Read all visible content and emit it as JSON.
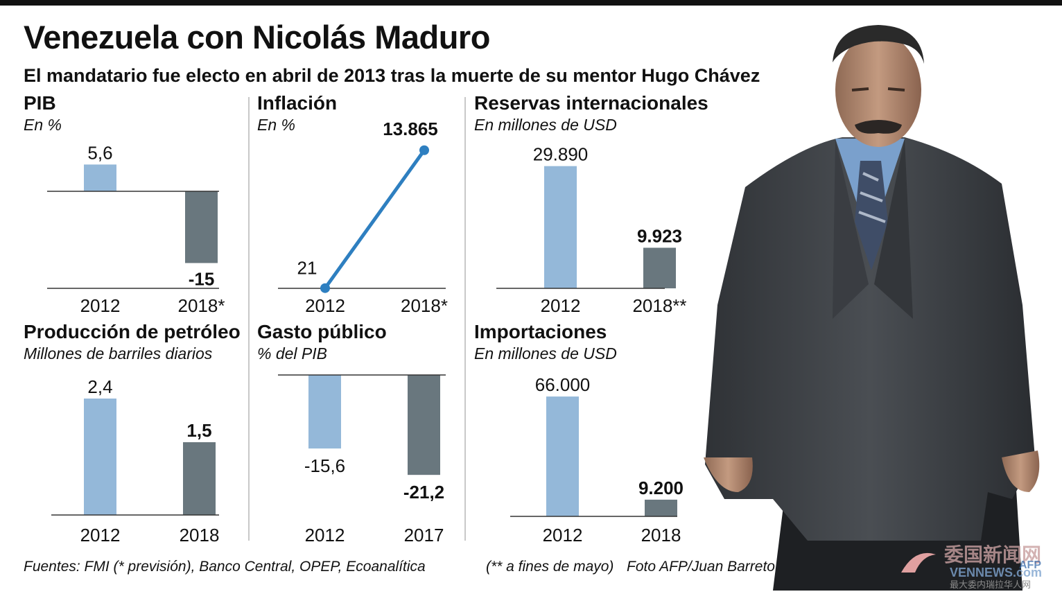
{
  "header": {
    "title": "Venezuela con Nicolás Maduro",
    "subtitle": "El mandatario fue electo en abril de 2013 tras la muerte de su mentor Hugo Chávez"
  },
  "colors": {
    "first": "#94b8d9",
    "second": "#69777e",
    "line": "#2e7fc0",
    "axis": "#333333"
  },
  "chart_data": [
    {
      "type": "bar",
      "title": "PIB",
      "unit": "En %",
      "categories": [
        "2012",
        "2018*"
      ],
      "values": [
        5.6,
        -15
      ],
      "labels": [
        "5,6",
        "-15"
      ]
    },
    {
      "type": "line",
      "title": "Inflación",
      "unit": "En %",
      "categories": [
        "2012",
        "2018*"
      ],
      "values": [
        21,
        13865
      ],
      "labels": [
        "21",
        "13.865"
      ]
    },
    {
      "type": "bar",
      "title": "Reservas internacionales",
      "unit": "En millones de USD",
      "categories": [
        "2012",
        "2018**"
      ],
      "values": [
        29890,
        9923
      ],
      "labels": [
        "29.890",
        "9.923"
      ]
    },
    {
      "type": "bar",
      "title": "Producción de petróleo",
      "unit": "Millones de barriles diarios",
      "categories": [
        "2012",
        "2018"
      ],
      "values": [
        2.4,
        1.5
      ],
      "labels": [
        "2,4",
        "1,5"
      ]
    },
    {
      "type": "bar",
      "title": "Gasto público",
      "unit": "% del PIB",
      "categories": [
        "2012",
        "2017"
      ],
      "values": [
        -15.6,
        -21.2
      ],
      "labels": [
        "-15,6",
        "-21,2"
      ]
    },
    {
      "type": "bar",
      "title": "Importaciones",
      "unit": "En millones de USD",
      "categories": [
        "2012",
        "2018"
      ],
      "values": [
        66000,
        9200
      ],
      "labels": [
        "66.000",
        "9.200"
      ]
    }
  ],
  "footer": {
    "sources": "Fuentes: FMI (* previsión), Banco Central, OPEP, Ecoanalítica",
    "note": "(** a fines de mayo)",
    "photo_credit": "Foto AFP/Juan Barreto"
  },
  "watermark": {
    "text_cn": "委国新闻网",
    "text_en": "VENNEWS.com",
    "tagline": "最大委内瑞拉华人网",
    "agency": "AFP"
  }
}
